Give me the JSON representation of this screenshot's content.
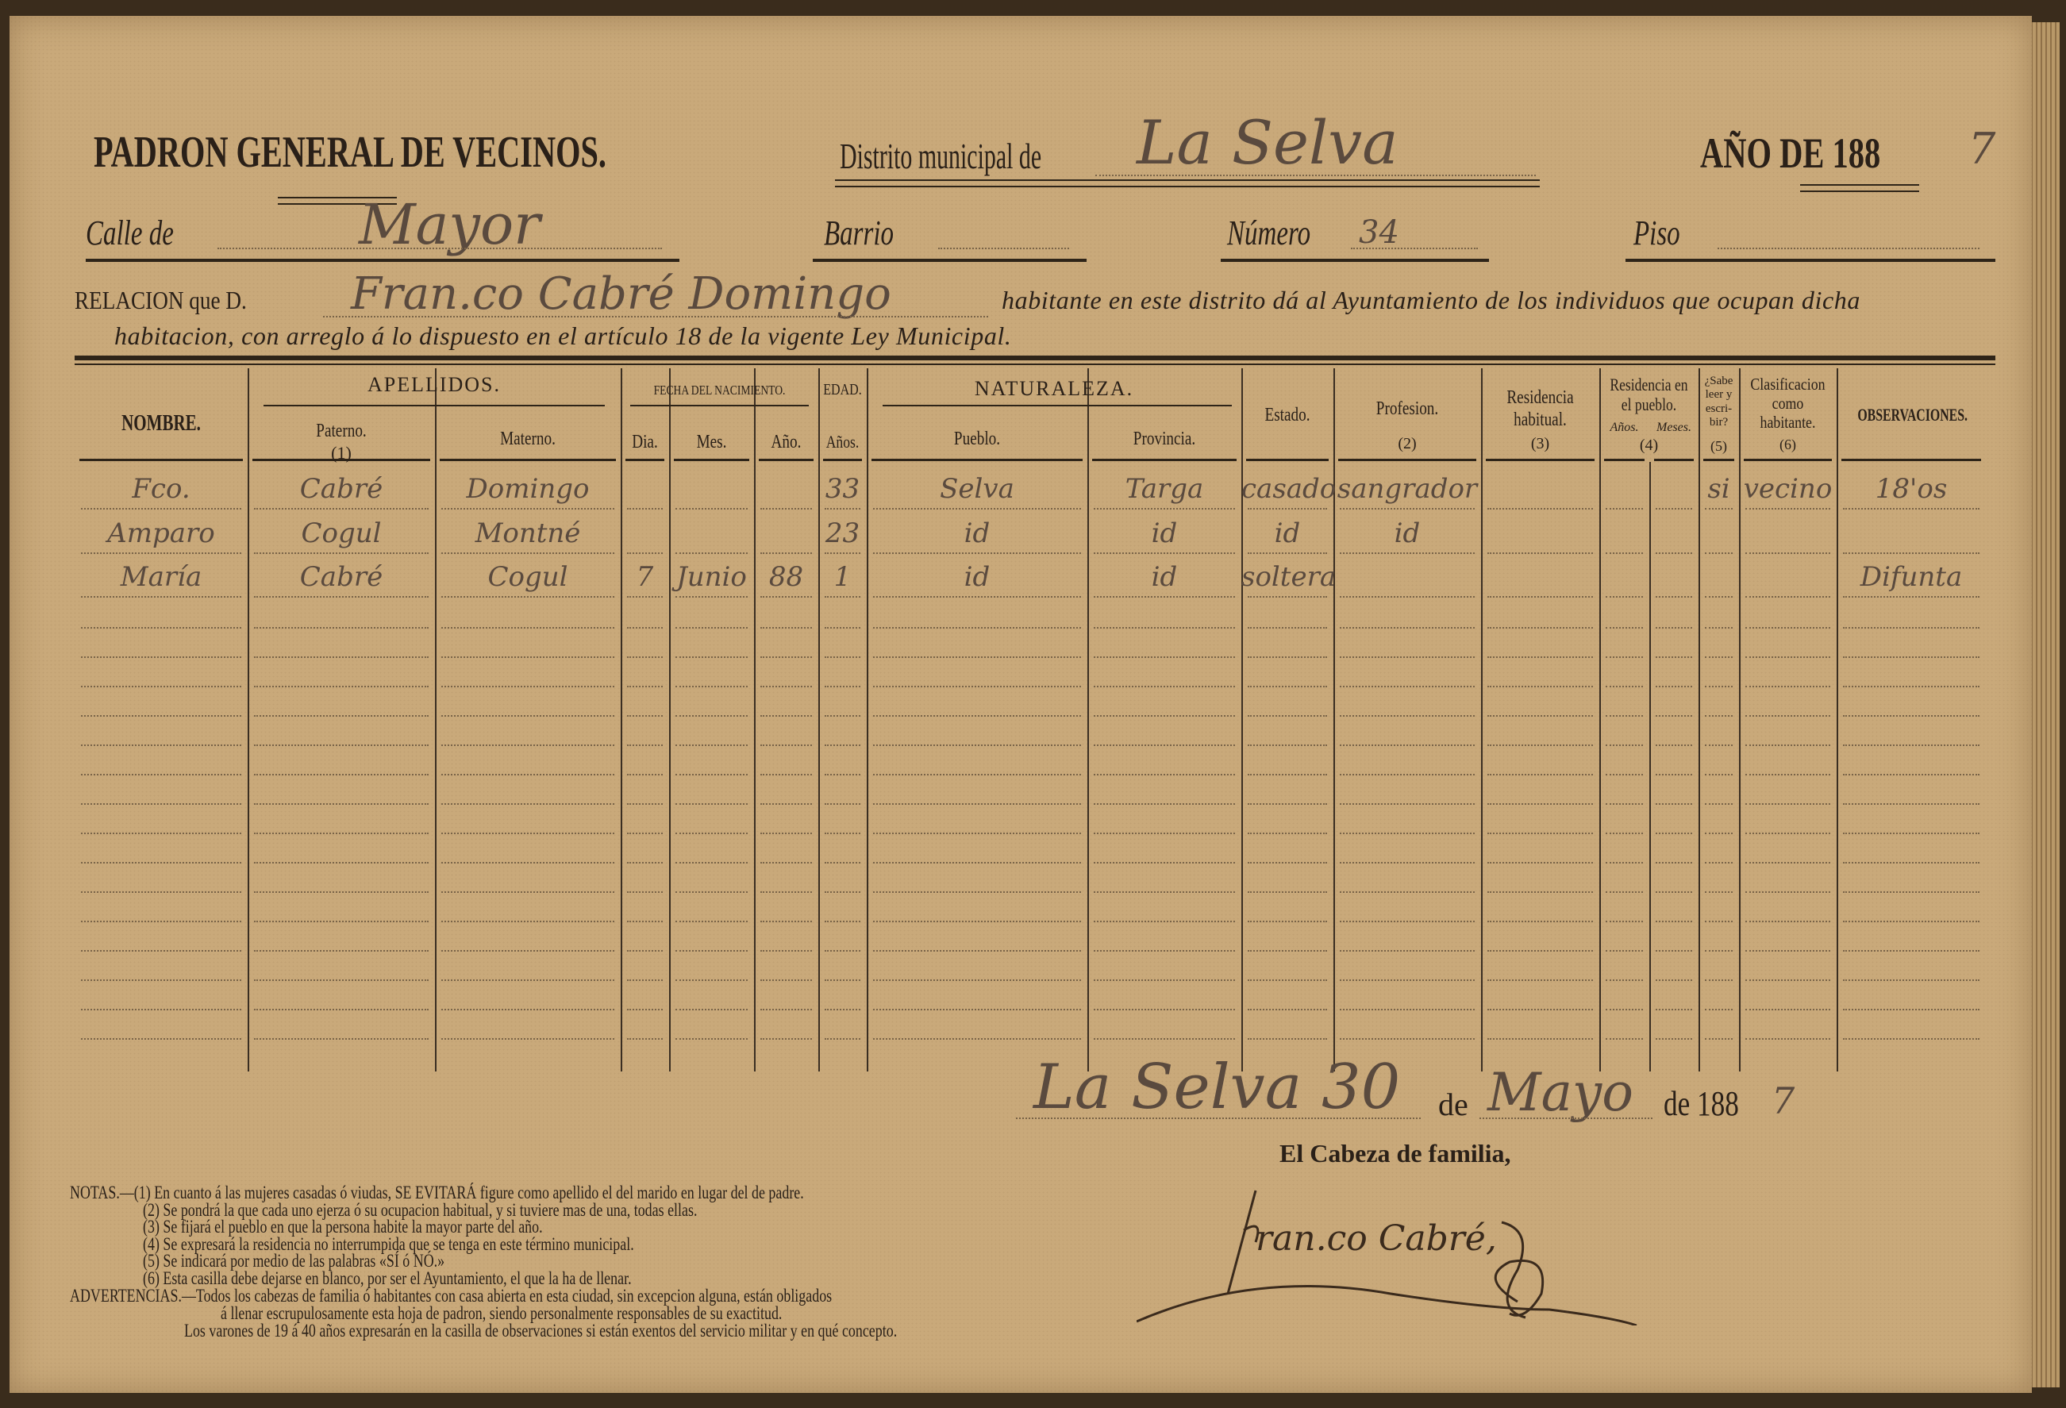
{
  "header": {
    "title": "PADRON GENERAL DE VECINOS.",
    "district_label": "Distrito municipal de",
    "district_value": "La Selva",
    "year_label": "AÑO DE 188",
    "year_value": "7",
    "street_label": "Calle de",
    "street_value": "Mayor",
    "barrio_label": "Barrio",
    "barrio_value": "",
    "number_label": "Número",
    "number_value": "34",
    "floor_label": "Piso",
    "floor_value": "",
    "relacion_label": "RELACION que D.",
    "relacion_value": "Fran.co Cabré Domingo",
    "relacion_text_1": "habitante en este distrito dá al Ayuntamiento de los individuos que ocupan dicha",
    "relacion_text_2": "habitacion, con arreglo á lo dispuesto en el artículo 18 de la vigente Ley Municipal."
  },
  "table": {
    "headers": {
      "nombre": "NOMBRE.",
      "apellidos": "APELLIDOS.",
      "paterno": "Paterno.",
      "paterno_note": "(1)",
      "materno": "Materno.",
      "fecha": "FECHA DEL NACIMIENTO.",
      "dia": "Dia.",
      "mes": "Mes.",
      "anio": "Año.",
      "edad": "EDAD.",
      "anios": "Años.",
      "naturaleza": "NATURALEZA.",
      "pueblo": "Pueblo.",
      "provincia": "Provincia.",
      "estado": "Estado.",
      "profesion": "Profesion.",
      "profesion_note": "(2)",
      "residencia": "Residencia habitual.",
      "residencia_note": "(3)",
      "residencia_pueblo": "Residencia en el pueblo.",
      "res_anios": "Años.",
      "res_meses": "Meses.",
      "residencia_pueblo_note": "(4)",
      "sabe": "¿Sabe leer y escri-bir?",
      "sabe_note": "(5)",
      "clasificacion": "Clasificacion como habitante.",
      "clasificacion_note": "(6)",
      "observaciones": "OBSERVACIONES."
    },
    "rows": [
      {
        "nombre": "Fco.",
        "paterno": "Cabré",
        "materno": "Domingo",
        "dia": "",
        "mes": "",
        "anio": "",
        "edad": "33",
        "pueblo": "Selva",
        "provincia": "Targa",
        "estado": "casado",
        "profesion": "sangrador",
        "residencia": "",
        "res_anios": "",
        "res_meses": "",
        "sabe": "si",
        "clasificacion": "vecino",
        "observaciones": "18'os"
      },
      {
        "nombre": "Amparo",
        "paterno": "Cogul",
        "materno": "Montné",
        "dia": "",
        "mes": "",
        "anio": "",
        "edad": "23",
        "pueblo": "id",
        "provincia": "id",
        "estado": "id",
        "profesion": "id",
        "residencia": "",
        "res_anios": "",
        "res_meses": "",
        "sabe": "",
        "clasificacion": "",
        "observaciones": ""
      },
      {
        "nombre": "María",
        "paterno": "Cabré",
        "materno": "Cogul",
        "dia": "7",
        "mes": "Junio",
        "anio": "88",
        "edad": "1",
        "pueblo": "id",
        "provincia": "id",
        "estado": "soltera",
        "profesion": "",
        "residencia": "",
        "res_anios": "",
        "res_meses": "",
        "sabe": "",
        "clasificacion": "",
        "observaciones": "Difunta"
      }
    ]
  },
  "footer": {
    "place_date_value": "La Selva 30",
    "de_1": "de",
    "month_value": "Mayo",
    "de_year_label": "de 188",
    "year_value": "7",
    "cabeza_label": "El Cabeza de familia,",
    "signature": "Fran.co Cabré",
    "notas": [
      "NOTAS.—(1)  En cuanto á las mujeres casadas ó viudas, SE EVITARÁ figure como apellido el del marido en lugar del de padre.",
      "(2)  Se pondrá la que cada uno ejerza ó su ocupacion habitual, y si tuviere mas de una, todas ellas.",
      "(3)  Se fijará el pueblo en que la persona habite la mayor parte del año.",
      "(4)  Se expresará la residencia no interrumpida que se tenga en este término municipal.",
      "(5)  Se indicará por medio de las palabras «SÍ ó NÓ.»",
      "(6)  Esta casilla debe dejarse en blanco, por ser el Ayuntamiento, el que la ha de llenar."
    ],
    "advertencias": [
      "ADVERTENCIAS.—Todos los cabezas de familia ó habitantes con casa abierta en esta ciudad, sin excepcion alguna, están obligados",
      "á llenar escrupulosamente esta hoja de padron, siendo personalmente responsables de su exactitud.",
      "Los varones de 19 á 40 años expresarán en la casilla de observaciones si están exentos del servicio militar y en qué concepto."
    ]
  },
  "colors": {
    "paper": "#c9a97a",
    "ink": "#2a2018",
    "handwriting": "#5a4a3e"
  }
}
